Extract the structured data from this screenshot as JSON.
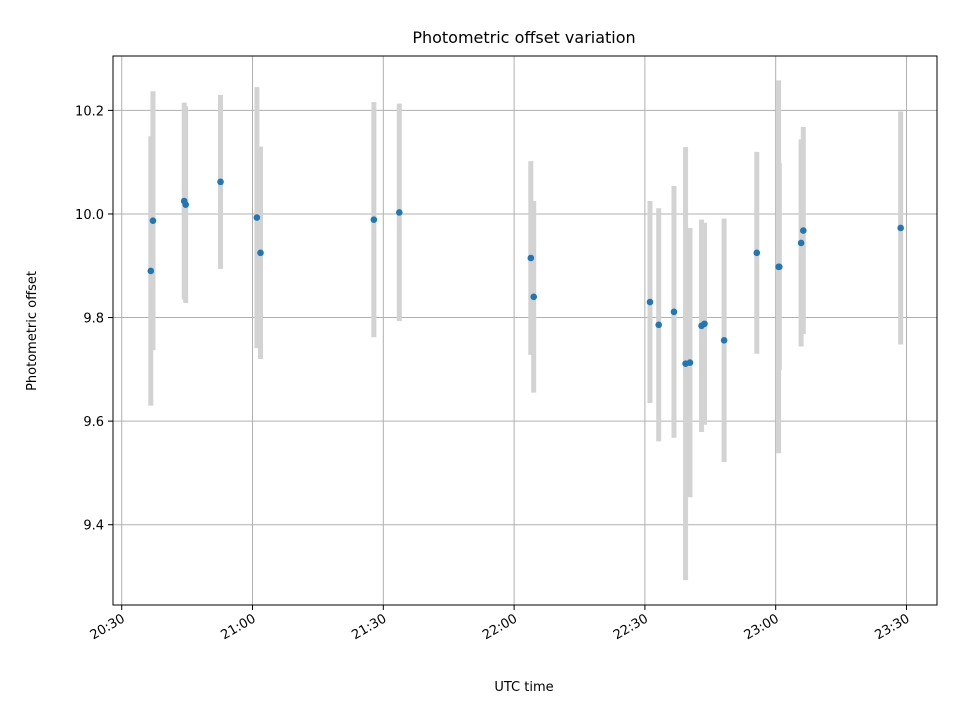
{
  "chart_data": {
    "type": "scatter",
    "title": "Photometric offset variation",
    "xlabel": "UTC time",
    "ylabel": "Photometric offset",
    "xlim": [
      "20:28",
      "23:37"
    ],
    "ylim": [
      9.245,
      10.305
    ],
    "x_ticks": [
      "20:30",
      "21:00",
      "21:30",
      "22:00",
      "22:30",
      "23:00",
      "23:30"
    ],
    "y_ticks": [
      "9.4",
      "9.6",
      "9.8",
      "10.0",
      "10.2"
    ],
    "grid": true,
    "colors": {
      "point": "#1f77b4",
      "errorbar": "#d3d3d3",
      "grid": "#b0b0b0"
    },
    "series": [
      {
        "points": [
          {
            "x": "20:36:40",
            "y": 9.89,
            "yerr": 0.26
          },
          {
            "x": "20:37:10",
            "y": 9.987,
            "yerr": 0.25
          },
          {
            "x": "20:44:20",
            "y": 10.025,
            "yerr": 0.19
          },
          {
            "x": "20:44:40",
            "y": 10.018,
            "yerr": 0.19
          },
          {
            "x": "20:52:40",
            "y": 10.062,
            "yerr": 0.168
          },
          {
            "x": "21:01:00",
            "y": 9.993,
            "yerr": 0.252
          },
          {
            "x": "21:01:50",
            "y": 9.925,
            "yerr": 0.205
          },
          {
            "x": "21:27:50",
            "y": 9.989,
            "yerr": 0.227
          },
          {
            "x": "21:33:40",
            "y": 10.003,
            "yerr": 0.21
          },
          {
            "x": "22:03:50",
            "y": 9.915,
            "yerr": 0.187
          },
          {
            "x": "22:04:30",
            "y": 9.84,
            "yerr": 0.185
          },
          {
            "x": "22:31:10",
            "y": 9.83,
            "yerr": 0.195
          },
          {
            "x": "22:33:10",
            "y": 9.786,
            "yerr": 0.225
          },
          {
            "x": "22:36:40",
            "y": 9.811,
            "yerr": 0.243
          },
          {
            "x": "22:39:20",
            "y": 9.711,
            "yerr": 0.418
          },
          {
            "x": "22:40:20",
            "y": 9.713,
            "yerr": 0.26
          },
          {
            "x": "22:43:00",
            "y": 9.784,
            "yerr": 0.205
          },
          {
            "x": "22:43:40",
            "y": 9.788,
            "yerr": 0.195
          },
          {
            "x": "22:48:10",
            "y": 9.756,
            "yerr": 0.235
          },
          {
            "x": "22:55:40",
            "y": 9.925,
            "yerr": 0.195
          },
          {
            "x": "23:00:40",
            "y": 9.898,
            "yerr": 0.36
          },
          {
            "x": "23:00:50",
            "y": 9.898,
            "yerr": 0.2
          },
          {
            "x": "23:05:50",
            "y": 9.944,
            "yerr": 0.2
          },
          {
            "x": "23:06:20",
            "y": 9.968,
            "yerr": 0.2
          },
          {
            "x": "23:28:40",
            "y": 9.973,
            "yerr": 0.225
          }
        ]
      }
    ]
  }
}
